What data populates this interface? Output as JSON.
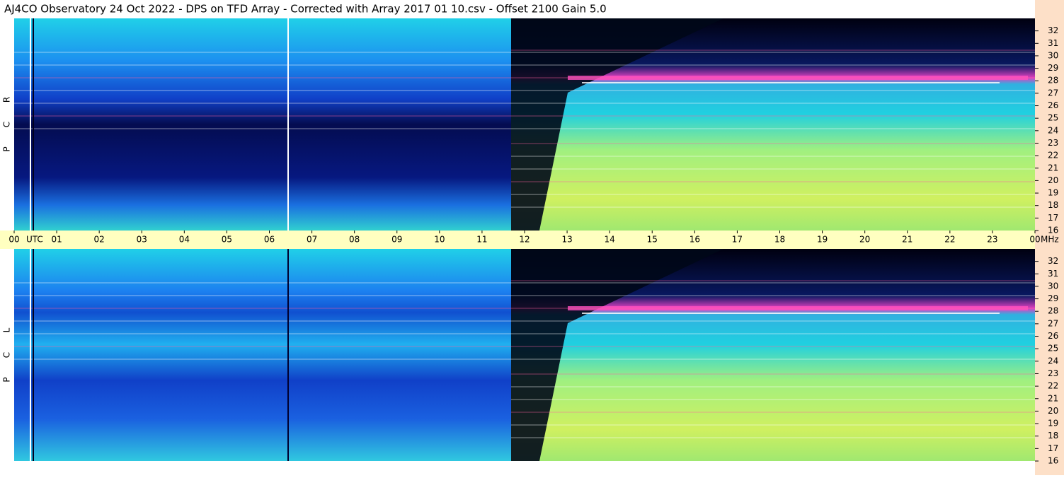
{
  "title": "AJ4CO Observatory  24 Oct 2022  -  DPS on TFD Array  -  Corrected with Array 2017 01 10.csv  -  Offset 2100  Gain 5.0",
  "time_axis": {
    "label": "UTC",
    "xlim": [
      0,
      24
    ],
    "xticks": [
      {
        "value": 0,
        "label": "00"
      },
      {
        "value": 1,
        "label": "01"
      },
      {
        "value": 2,
        "label": "02"
      },
      {
        "value": 3,
        "label": "03"
      },
      {
        "value": 4,
        "label": "04"
      },
      {
        "value": 5,
        "label": "05"
      },
      {
        "value": 6,
        "label": "06"
      },
      {
        "value": 7,
        "label": "07"
      },
      {
        "value": 8,
        "label": "08"
      },
      {
        "value": 9,
        "label": "09"
      },
      10,
      11,
      12,
      13,
      14,
      15,
      16,
      17,
      18,
      19,
      20,
      21,
      22,
      23,
      {
        "value": 24,
        "label": "00"
      }
    ]
  },
  "freq_unit": "MHz",
  "chart_data": [
    {
      "type": "spectrogram",
      "panel_letters": [
        "R",
        "C",
        "P"
      ],
      "ylim": [
        16,
        33
      ],
      "yticks": [
        16,
        17,
        18,
        19,
        20,
        21,
        22,
        23,
        24,
        25,
        26,
        27,
        28,
        29,
        30,
        31,
        32
      ]
    },
    {
      "type": "spectrogram",
      "panel_letters": [
        "L",
        "C",
        "P"
      ],
      "ylim": [
        16,
        33
      ],
      "yticks": [
        16,
        17,
        18,
        19,
        20,
        21,
        22,
        23,
        24,
        25,
        26,
        27,
        28,
        29,
        30,
        31,
        32
      ]
    }
  ]
}
